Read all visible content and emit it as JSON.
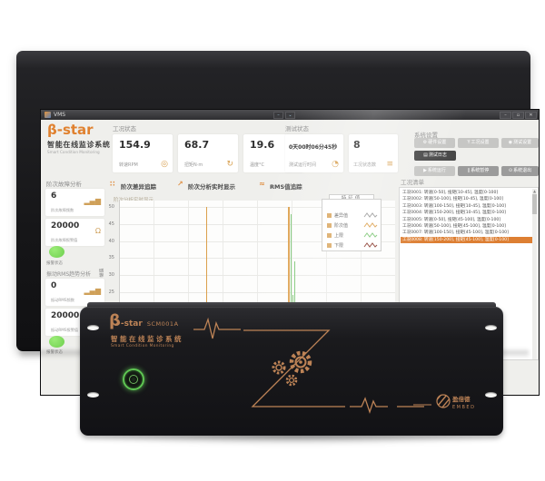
{
  "colors": {
    "accent_orange": "#e0812f",
    "copper": "#bd8356",
    "status_green": "#6fcf4f",
    "selected_row": "#dd7f33"
  },
  "titlebar": {
    "app_name": "VMS",
    "pane_minimize": "–",
    "pane_dropdown": "⌄",
    "win_minimize": "–",
    "win_maximize": "▫",
    "win_close": "✕"
  },
  "brand": {
    "logo": "β-star",
    "title": "智能在线监诊系统",
    "subtitle": "Smart Condition Monitoring"
  },
  "sidebar": {
    "order_section": {
      "title": "阶次故障分析",
      "metric1": {
        "value": "6",
        "label": "阶次故障频数",
        "icon_glyph": "▂▄▆"
      },
      "metric2": {
        "value": "20000",
        "label": "阶次故障报警值",
        "icon_glyph": "Ω"
      },
      "status_label": "报警状态"
    },
    "rms_section": {
      "title": "振动RMS趋势分析",
      "metric1": {
        "value": "0",
        "label": "振动RMS频数",
        "icon_glyph": "▂▄▆"
      },
      "metric2": {
        "value": "20000",
        "label": "振动RMS报警值",
        "icon_glyph": "Ω"
      },
      "status_label": "报警状态"
    }
  },
  "condition_status": {
    "title": "工况状态",
    "cards": [
      {
        "value": "154.9",
        "label": "转速RPM",
        "icon_glyph": "◎"
      },
      {
        "value": "68.7",
        "label": "扭矩N·m",
        "icon_glyph": "↻"
      },
      {
        "value": "19.6",
        "label": "温度°C",
        "icon_glyph": "♨"
      }
    ]
  },
  "test_status": {
    "title": "测试状态",
    "cards": [
      {
        "value": "0天00时06分45秒",
        "label": "测试运行时间",
        "icon_glyph": "◔"
      },
      {
        "value": "8",
        "label": "工况状态数",
        "icon_glyph": "≡"
      }
    ]
  },
  "system_settings": {
    "title": "系统设置",
    "buttons": [
      {
        "label": "硬件设置",
        "glyph": "⚙"
      },
      {
        "label": "工况设置",
        "glyph": "Y"
      },
      {
        "label": "测试设置",
        "glyph": "◉"
      },
      {
        "label": "测试日志",
        "glyph": "▤"
      },
      {
        "label": "系统运行",
        "glyph": "▶"
      },
      {
        "label": "系统暂停",
        "glyph": "∥"
      },
      {
        "label": "系统退出",
        "glyph": "⊙"
      }
    ]
  },
  "tabs": [
    {
      "label": "阶次差异追踪",
      "glyph": "∷"
    },
    {
      "label": "阶次分析实时显示",
      "glyph": "↗"
    },
    {
      "label": "RMS值追踪",
      "glyph": "≈"
    }
  ],
  "chart_data": {
    "type": "bar",
    "title": "阶次分析实时显示",
    "ylabel": "幅值",
    "ylim": [
      4.8,
      52
    ],
    "yticks": [
      50,
      45,
      40,
      35,
      30,
      25,
      20,
      15,
      10
    ],
    "grid": true,
    "bar_colors": {
      "o": "#dca04c",
      "g": "#7cc674"
    },
    "legend": {
      "title": "特征值",
      "position": "right-inside",
      "items": [
        {
          "label": "差异值",
          "color": "#9a9a9a"
        },
        {
          "label": "阶次值",
          "color": "#dca04c"
        },
        {
          "label": "上限",
          "color": "#7cc674"
        },
        {
          "label": "下限",
          "color": "#8b3a2e"
        }
      ]
    },
    "spikes": [
      {
        "x": 15.5,
        "v": 7,
        "c": "g"
      },
      {
        "x": 22.4,
        "v": 14,
        "c": "o"
      },
      {
        "x": 23.4,
        "v": 10.5,
        "c": "g"
      },
      {
        "x": 29.6,
        "v": 20,
        "c": "g"
      },
      {
        "x": 31.3,
        "v": 50,
        "c": "o"
      },
      {
        "x": 32.1,
        "v": 16,
        "c": "o"
      },
      {
        "x": 32.9,
        "v": 16,
        "c": "g"
      },
      {
        "x": 33.7,
        "v": 12,
        "c": "g"
      },
      {
        "x": 38.8,
        "v": 18.5,
        "c": "g"
      },
      {
        "x": 39.6,
        "v": 16,
        "c": "o"
      },
      {
        "x": 40.3,
        "v": 15,
        "c": "o"
      },
      {
        "x": 53.0,
        "v": 19,
        "c": "g"
      },
      {
        "x": 59.5,
        "v": 20,
        "c": "g"
      },
      {
        "x": 60.3,
        "v": 20,
        "c": "o"
      },
      {
        "x": 61.2,
        "v": 50,
        "c": "o"
      },
      {
        "x": 61.9,
        "v": 48,
        "c": "g"
      },
      {
        "x": 62.6,
        "v": 24,
        "c": "g"
      },
      {
        "x": 63.3,
        "v": 34,
        "c": "g"
      },
      {
        "x": 64.0,
        "v": 10,
        "c": "g"
      },
      {
        "x": 64.8,
        "v": 8,
        "c": "g"
      }
    ]
  },
  "condition_list": {
    "title": "工况清单",
    "selected_index": 7,
    "items": [
      "工况0001: 转速[0-50], 扭矩[10-45], 温度[0-100]",
      "工况0002: 转速[50-100], 扭矩[10-45], 温度[0-100]",
      "工况0003: 转速[100-150], 扭矩[10-45], 温度[0-100]",
      "工况0004: 转速[150-200], 扭矩[10-45], 温度[0-100]",
      "工况0005: 转速[0-50], 扭矩[45-100], 温度[0-100]",
      "工况0006: 转速[50-100], 扭矩[45-100], 温度[0-100]",
      "工况0007: 转速[100-150], 扭矩[45-100], 温度[0-100]",
      "工况0008: 转速[150-200], 扭矩[45-100], 温度[0-100]"
    ]
  },
  "device": {
    "beta": "β",
    "star": "-star",
    "model": "SCM001A",
    "title": "智能在线监诊系统",
    "subtitle": "Smart Condition Monitoring",
    "brand_cn": "盈倍德",
    "brand_en": "EMBED"
  },
  "watermark": {
    "brand_cn": "盈倍德",
    "brand_en": "EMBED"
  }
}
